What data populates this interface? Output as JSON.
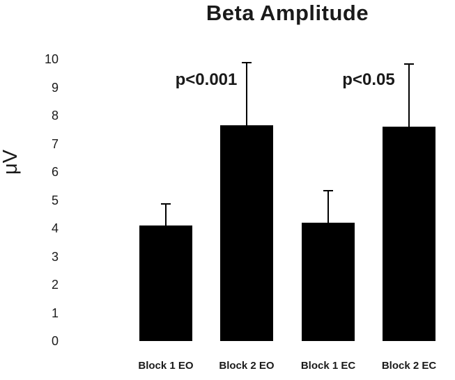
{
  "chart_data": {
    "type": "bar",
    "title": "Beta Amplitude",
    "ylabel": "μV",
    "xlabel": "",
    "categories": [
      "Block 1 EO",
      "Block 2 EO",
      "Block 1 EC",
      "Block 2 EC"
    ],
    "values": [
      4.1,
      7.65,
      4.2,
      7.6
    ],
    "errors": [
      0.8,
      2.25,
      1.15,
      2.25
    ],
    "ylim": [
      0,
      10
    ],
    "ytick_step": 1,
    "bar_color": "#000000",
    "grid": false,
    "legend_position": "none",
    "annotations": [
      {
        "text": "p<0.001",
        "between": [
          0,
          1
        ],
        "y": 9.25
      },
      {
        "text": "p<0.05",
        "between": [
          2,
          3
        ],
        "y": 9.25
      }
    ]
  }
}
